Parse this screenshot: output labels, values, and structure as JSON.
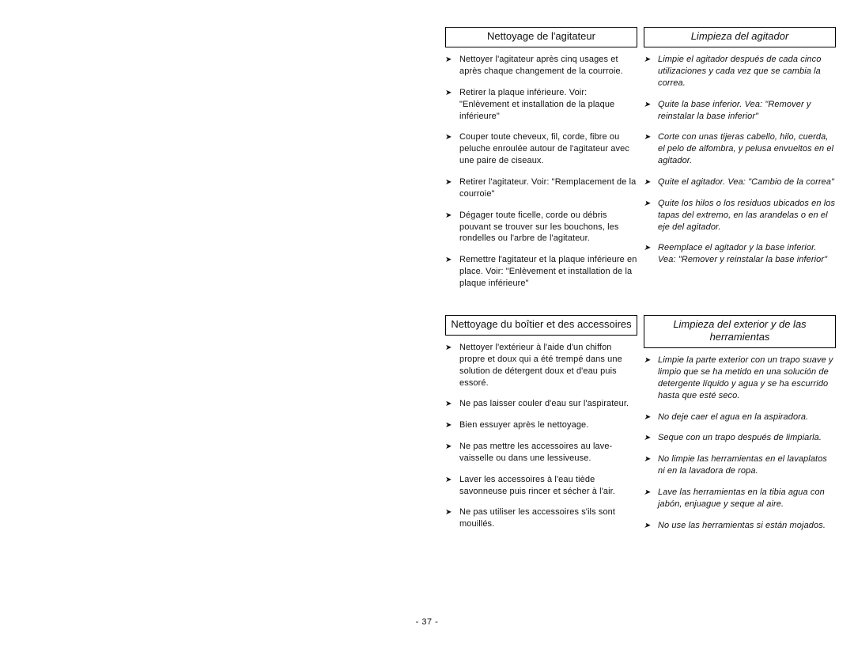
{
  "page_number": "- 37 -",
  "sections": [
    {
      "fr": {
        "title": "Nettoyage de l'agitateur",
        "items": [
          "Nettoyer l'agitateur après cinq usages et après chaque changement de la courroie.",
          "Retirer la plaque inférieure. Voir: \"Enlèvement et installation de la plaque inférieure\"",
          "Couper toute cheveux, fil, corde, fibre ou peluche enroulée autour de l'agitateur avec une paire de ciseaux.",
          "Retirer l'agitateur. Voir: \"Remplacement de la courroie\"",
          "Dégager toute ficelle, corde ou débris pouvant se trouver sur les bouchons, les rondelles ou l'arbre de l'agitateur.",
          "Remettre l'agitateur et la plaque inférieure en place. Voir: \"Enlèvement et installation de la plaque inférieure\""
        ]
      },
      "es": {
        "title": "Limpieza del agitador",
        "items": [
          "Limpie el agitador después de cada cinco utilizaciones y cada vez que se cambia la correa.",
          "Quite la base inferior. Vea: \"Remover y reinstalar la base inferior\"",
          "Corte con unas tijeras cabello, hilo, cuerda, el pelo de alfombra, y pelusa envueltos en el agitador.",
          "Quite el agitador. Vea: \"Cambio de la correa\"",
          "Quite los hilos o los residuos ubicados en los tapas del extremo, en las arandelas o en el eje del agitador.",
          "Reemplace el agitador y la base inferior. Vea: \"Remover y reinstalar la base inferior\""
        ]
      }
    },
    {
      "fr": {
        "title": "Nettoyage du boîtier et des accessoires",
        "items": [
          "Nettoyer l'extérieur à l'aide d'un chiffon propre et doux qui a été trempé dans une solution de détergent doux et d'eau puis essoré.",
          "Ne pas laisser couler d'eau sur l'aspirateur.",
          "Bien essuyer après le nettoyage.",
          "Ne pas mettre les accessoires au lave-vaisselle ou dans une lessiveuse.",
          "Laver les accessoires à l'eau tiède savonneuse puis rincer et sécher à l'air.",
          "Ne pas utiliser les accessoires s'ils sont mouillés."
        ]
      },
      "es": {
        "title": "Limpieza del exterior y de las herramientas",
        "items": [
          "Limpie la parte exterior con un trapo suave y limpio que se ha metido en una solución de detergente líquido y agua y se ha escurrido hasta que esté seco.",
          "No deje caer el agua en la aspiradora.",
          "Seque con un trapo después de limpiarla.",
          "No limpie las herramientas en el lavaplatos ni en la lavadora de ropa.",
          "Lave las herramientas en la tibia agua con jabón, enjuague y seque al aire.",
          "No use las herramientas si están mojados."
        ]
      }
    }
  ]
}
